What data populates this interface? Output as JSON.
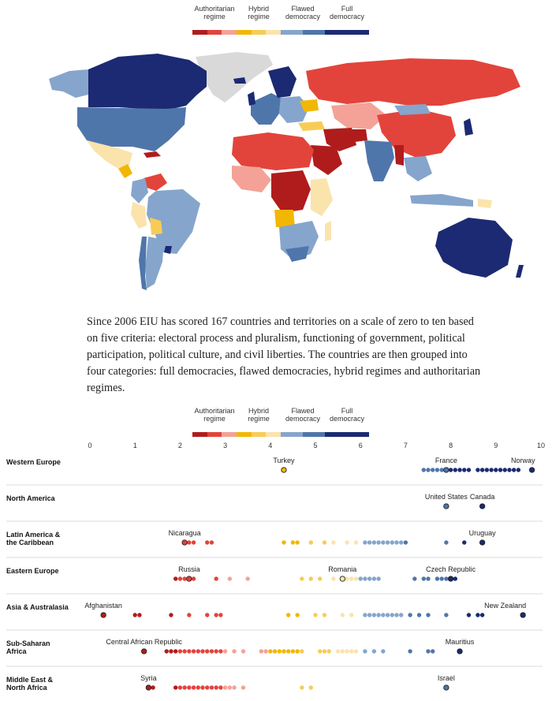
{
  "legend": {
    "labels": [
      "Authoritarian\nregime",
      "Hybrid\nregime",
      "Flawed\ndemocracy",
      "Full\ndemocracy"
    ],
    "colors": [
      "#b01c1c",
      "#e2443b",
      "#f4a297",
      "#f2b705",
      "#f7cc56",
      "#fbe3ac",
      "#86a5cc",
      "#4f76aa",
      "#1b2a72"
    ]
  },
  "colors": {
    "auth_dark": "#b01c1c",
    "auth_mid": "#e2443b",
    "auth_light": "#f4a297",
    "hybrid_dark": "#f2b705",
    "hybrid_mid": "#f7cc56",
    "hybrid_light": "#fbe3ac",
    "flawed_light": "#86a5cc",
    "flawed_dark": "#4f76aa",
    "full": "#1b2a72",
    "no_data": "#d9d9d9"
  },
  "description": "Since 2006 EIU has scored 167 countries and territories on a scale of zero to ten based on five criteria: electoral process and pluralism, functioning of government, political participation, political culture, and civil liberties. The countries are then grouped into four categories: full democracies, flawed democracies, hybrid regimes and authoritarian regimes.",
  "chart_data": {
    "type": "scatter",
    "title": "",
    "xlabel": "",
    "ylabel": "",
    "xlim": [
      0,
      10
    ],
    "xticks": [
      "0",
      "1",
      "2",
      "3",
      "4",
      "5",
      "6",
      "7",
      "8",
      "9",
      "10"
    ],
    "legend_placement": "top",
    "categories": [
      "Western Europe",
      "North America",
      "Latin America & the Caribbean",
      "Eastern Europe",
      "Asia & Australasia",
      "Sub-Saharan Africa",
      "Middle East & North Africa"
    ],
    "series": [
      {
        "region": "Western Europe",
        "values": [
          4.3,
          7.4,
          7.5,
          7.6,
          7.7,
          7.8,
          7.9,
          8.0,
          8.1,
          8.2,
          8.3,
          8.4,
          8.6,
          8.7,
          8.8,
          8.9,
          9.0,
          9.1,
          9.2,
          9.3,
          9.4,
          9.5,
          9.8
        ],
        "highlight": [
          {
            "label": "Turkey",
            "value": 4.3
          },
          {
            "label": "France",
            "value": 7.9
          },
          {
            "label": "Norway",
            "value": 9.8
          }
        ]
      },
      {
        "region": "North America",
        "values": [
          7.9,
          8.7
        ],
        "highlight": [
          {
            "label": "United States",
            "value": 7.9
          },
          {
            "label": "Canada",
            "value": 8.7
          }
        ]
      },
      {
        "region": "Latin America & the Caribbean",
        "values": [
          2.1,
          2.2,
          2.3,
          2.6,
          2.7,
          4.3,
          4.5,
          4.6,
          4.9,
          5.2,
          5.4,
          5.7,
          5.9,
          6.1,
          6.2,
          6.3,
          6.4,
          6.5,
          6.6,
          6.7,
          6.8,
          6.9,
          7.0,
          7.9,
          8.3,
          8.7
        ],
        "highlight": [
          {
            "label": "Nicaragua",
            "value": 2.1
          },
          {
            "label": "Uruguay",
            "value": 8.7
          }
        ]
      },
      {
        "region": "Eastern Europe",
        "values": [
          1.9,
          2.0,
          2.1,
          2.2,
          2.3,
          2.8,
          3.1,
          3.5,
          4.7,
          4.9,
          5.1,
          5.4,
          5.6,
          5.7,
          5.8,
          5.9,
          6.0,
          6.1,
          6.2,
          6.3,
          6.4,
          7.2,
          7.4,
          7.5,
          7.7,
          7.8,
          7.9,
          8.0,
          8.1
        ],
        "highlight": [
          {
            "label": "Russia",
            "value": 2.2
          },
          {
            "label": "Romania",
            "value": 5.6
          },
          {
            "label": "Czech Republic",
            "value": 8.0
          }
        ]
      },
      {
        "region": "Asia & Australasia",
        "values": [
          0.3,
          1.0,
          1.1,
          1.8,
          2.2,
          2.6,
          2.8,
          2.9,
          4.4,
          4.6,
          5.0,
          5.2,
          5.6,
          5.8,
          6.1,
          6.2,
          6.3,
          6.4,
          6.5,
          6.6,
          6.7,
          6.8,
          6.9,
          7.1,
          7.3,
          7.5,
          7.9,
          8.4,
          8.6,
          8.7,
          9.6
        ],
        "highlight": [
          {
            "label": "Afghanistan",
            "value": 0.3
          },
          {
            "label": "New Zealand",
            "value": 9.6
          }
        ]
      },
      {
        "region": "Sub-Saharan Africa",
        "values": [
          1.2,
          1.7,
          1.8,
          1.9,
          2.0,
          2.1,
          2.2,
          2.3,
          2.4,
          2.5,
          2.6,
          2.7,
          2.8,
          2.9,
          3.0,
          3.2,
          3.4,
          3.8,
          3.9,
          4.0,
          4.1,
          4.2,
          4.3,
          4.4,
          4.5,
          4.6,
          4.7,
          5.1,
          5.2,
          5.3,
          5.5,
          5.6,
          5.7,
          5.8,
          5.9,
          6.1,
          6.3,
          6.5,
          7.1,
          7.5,
          7.6,
          8.2
        ],
        "highlight": [
          {
            "label": "Central African Republic",
            "value": 1.2
          },
          {
            "label": "Mauritius",
            "value": 8.2
          }
        ]
      },
      {
        "region": "Middle East & North Africa",
        "values": [
          1.3,
          1.4,
          1.9,
          2.0,
          2.1,
          2.2,
          2.3,
          2.4,
          2.5,
          2.6,
          2.7,
          2.8,
          2.9,
          3.0,
          3.1,
          3.2,
          3.4,
          4.7,
          4.9,
          7.9
        ],
        "highlight": [
          {
            "label": "Syria",
            "value": 1.3
          },
          {
            "label": "Israel",
            "value": 7.9
          }
        ]
      }
    ]
  }
}
